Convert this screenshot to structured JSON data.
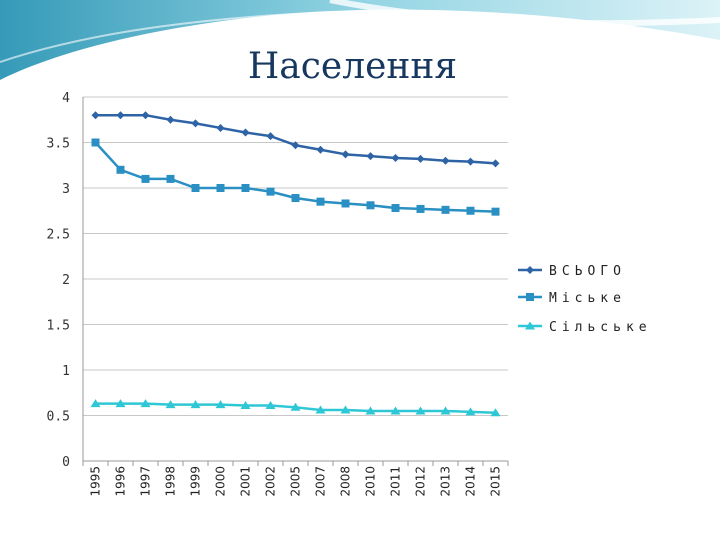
{
  "chart_data": {
    "type": "line",
    "title": "Населення",
    "categories": [
      "1995",
      "1996",
      "1997",
      "1998",
      "1999",
      "2000",
      "2001",
      "2002",
      "2005",
      "2007",
      "2008",
      "2010",
      "2011",
      "2012",
      "2013",
      "2014",
      "2015"
    ],
    "series": [
      {
        "name": "ВСЬОГО",
        "marker": "diamond",
        "color": "#2e63a6",
        "values": [
          3.8,
          3.8,
          3.8,
          3.75,
          3.71,
          3.66,
          3.61,
          3.57,
          3.47,
          3.42,
          3.37,
          3.35,
          3.33,
          3.32,
          3.3,
          3.29,
          3.27
        ]
      },
      {
        "name": "Міське",
        "marker": "square",
        "color": "#2a8fc2",
        "values": [
          3.5,
          3.2,
          3.1,
          3.1,
          3.0,
          3.0,
          3.0,
          2.96,
          2.89,
          2.85,
          2.83,
          2.81,
          2.78,
          2.77,
          2.76,
          2.75,
          2.74
        ]
      },
      {
        "name": "Сільське",
        "marker": "triangle",
        "color": "#2ec7d6",
        "values": [
          0.63,
          0.63,
          0.63,
          0.62,
          0.62,
          0.62,
          0.61,
          0.61,
          0.59,
          0.56,
          0.56,
          0.55,
          0.55,
          0.55,
          0.55,
          0.54,
          0.53
        ]
      }
    ],
    "y_ticks": [
      "0",
      "0.5",
      "1",
      "1.5",
      "2",
      "2.5",
      "3",
      "3.5",
      "4"
    ],
    "ylim": [
      0,
      4
    ],
    "grid": true,
    "legend_position": "right"
  }
}
